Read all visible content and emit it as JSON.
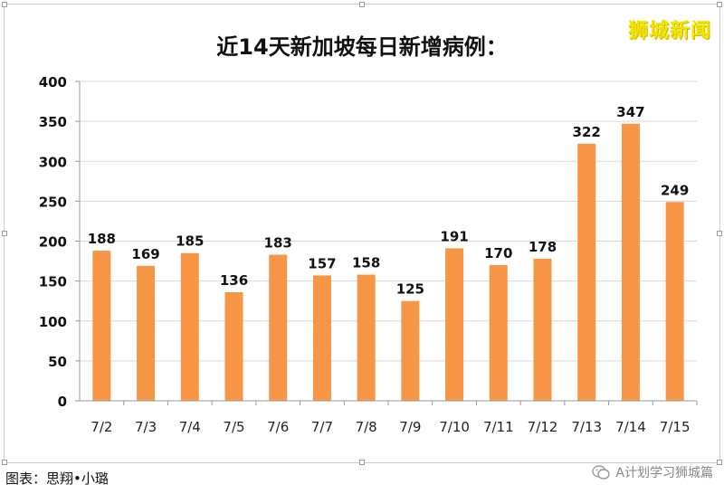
{
  "watermark": "狮城新闻",
  "caption": "图表：思翔•小璐",
  "account": "A计划学习狮城篇",
  "icons": [
    "wechat-icon"
  ],
  "chart_data": {
    "type": "bar",
    "title": "近14天新加坡每日新增病例：",
    "categories": [
      "7/2",
      "7/3",
      "7/4",
      "7/5",
      "7/6",
      "7/7",
      "7/8",
      "7/9",
      "7/10",
      "7/11",
      "7/12",
      "7/13",
      "7/14",
      "7/15"
    ],
    "values": [
      188,
      169,
      185,
      136,
      183,
      157,
      158,
      125,
      191,
      170,
      178,
      322,
      347,
      249
    ],
    "ylim": [
      0,
      400
    ],
    "yticks": [
      0,
      50,
      100,
      150,
      200,
      250,
      300,
      350,
      400
    ],
    "grid": true,
    "bar_color": "#f79646",
    "data_labels": true
  }
}
